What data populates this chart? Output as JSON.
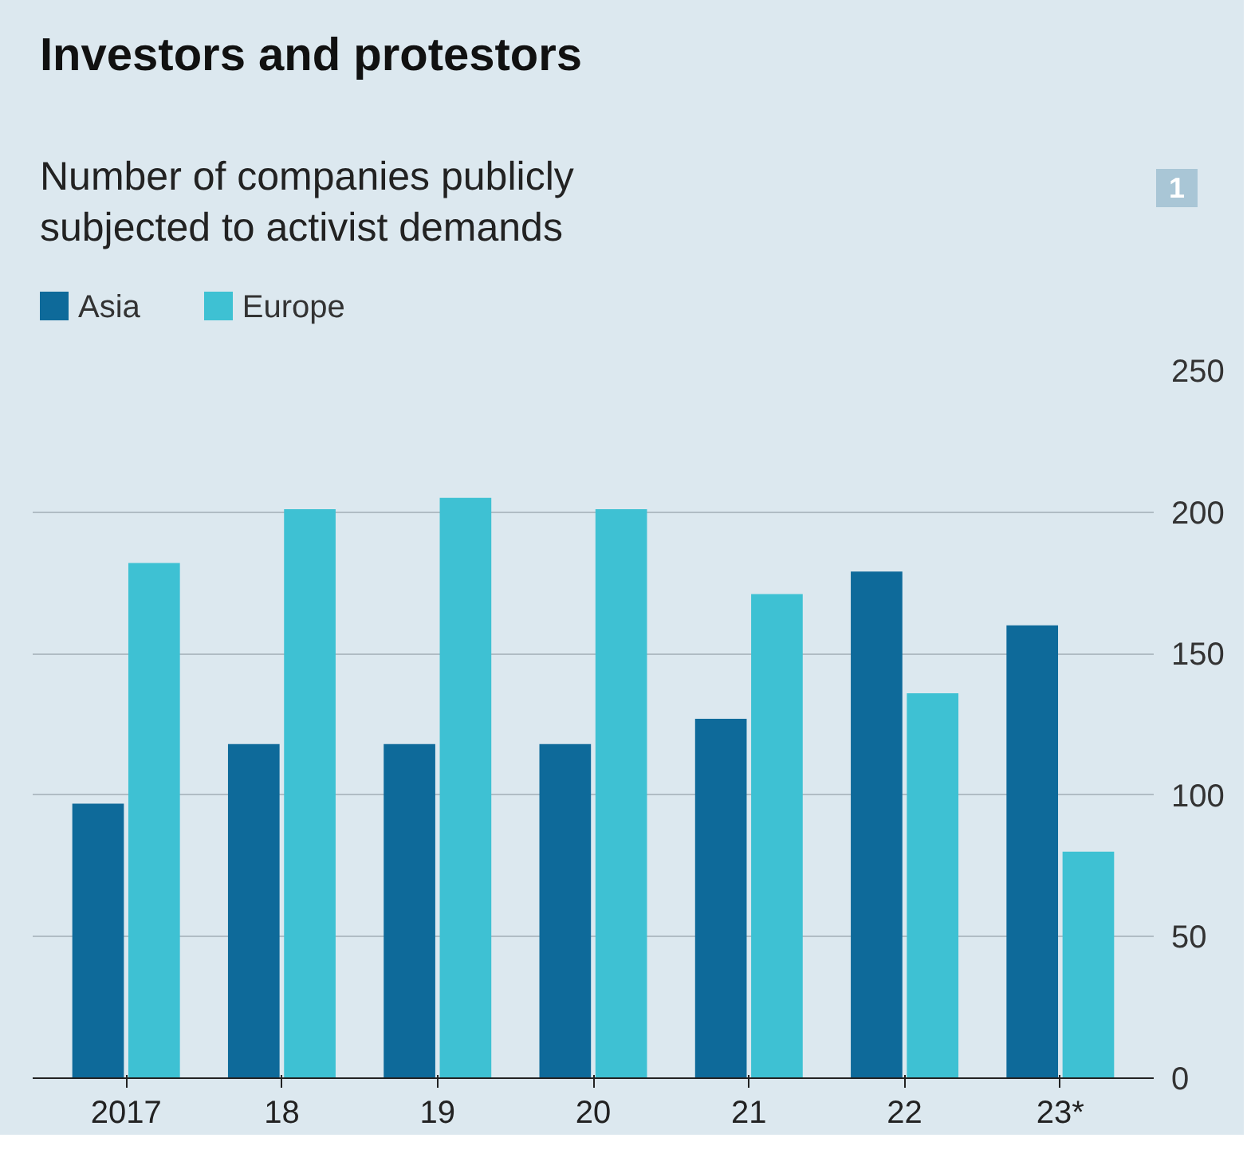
{
  "chart_data": {
    "type": "bar",
    "title": "Investors and protestors",
    "subtitle": "Number of companies publicly subjected to activist demands",
    "annotations": [
      "1"
    ],
    "categories": [
      "2017",
      "18",
      "19",
      "20",
      "21",
      "22",
      "23*"
    ],
    "series": [
      {
        "name": "Asia",
        "color": "#0e6a9a",
        "values": [
          97,
          118,
          118,
          118,
          127,
          179,
          160
        ]
      },
      {
        "name": "Europe",
        "color": "#3ec1d3",
        "values": [
          182,
          201,
          205,
          201,
          171,
          136,
          80
        ]
      }
    ],
    "ylim": [
      0,
      250
    ],
    "yticks": [
      0,
      50,
      100,
      150,
      200,
      250
    ],
    "grid": "y",
    "legend": "top left"
  }
}
